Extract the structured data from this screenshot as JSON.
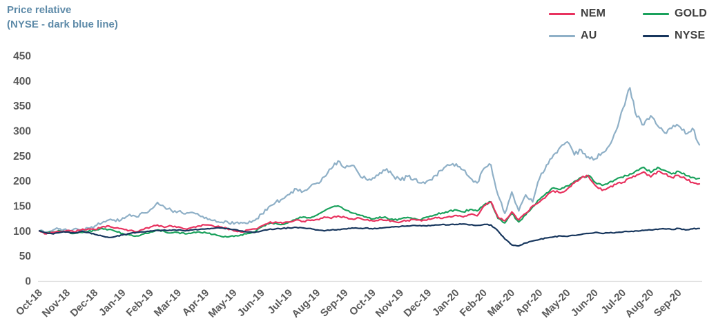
{
  "chart_data": {
    "type": "line",
    "title": "Price relative",
    "subtitle": "(NYSE - dark blue line)",
    "legend_position": "top-right",
    "legend_columns": 2,
    "grid": "baseline-only",
    "ylim": [
      0,
      450
    ],
    "y_ticks": [
      0,
      50,
      100,
      150,
      200,
      250,
      300,
      350,
      400,
      450
    ],
    "x_tick_labels": [
      "Oct-18",
      "Nov-18",
      "Dec-18",
      "Jan-19",
      "Feb-19",
      "Mar-19",
      "Apr-19",
      "May-19",
      "Jun-19",
      "Jul-19",
      "Aug-19",
      "Sep-19",
      "Oct-19",
      "Nov-19",
      "Dec-19",
      "Jan-20",
      "Feb-20",
      "Mar-20",
      "Apr-20",
      "May-20",
      "Jun-20",
      "Jul-20",
      "Aug-20",
      "Sep-20"
    ],
    "points_per_month": 4,
    "axis_text_color": "#595959",
    "title_color": "#5d8aa8",
    "baseline_color": "#d9d9d9",
    "series": [
      {
        "name": "NEM",
        "color": "#e8325f",
        "values": [
          100,
          94,
          97,
          99,
          101,
          98,
          102,
          104,
          103,
          108,
          110,
          106,
          104,
          101,
          98,
          103,
          108,
          112,
          107,
          110,
          108,
          104,
          107,
          110,
          112,
          110,
          108,
          105,
          100,
          98,
          102,
          104,
          110,
          116,
          118,
          115,
          118,
          122,
          119,
          121,
          123,
          128,
          125,
          130,
          127,
          124,
          126,
          122,
          120,
          123,
          121,
          119,
          118,
          121,
          123,
          120,
          124,
          127,
          125,
          129,
          131,
          128,
          133,
          130,
          150,
          158,
          128,
          120,
          138,
          122,
          135,
          150,
          158,
          170,
          180,
          176,
          184,
          196,
          206,
          210,
          191,
          181,
          187,
          193,
          197,
          206,
          212,
          218,
          208,
          219,
          214,
          207,
          211,
          204,
          197,
          194
        ]
      },
      {
        "name": "GOLD",
        "color": "#1aa15c",
        "values": [
          100,
          96,
          98,
          100,
          98,
          95,
          97,
          99,
          101,
          105,
          103,
          99,
          95,
          92,
          90,
          94,
          98,
          102,
          99,
          96,
          97,
          94,
          96,
          98,
          96,
          93,
          90,
          88,
          89,
          92,
          95,
          98,
          108,
          114,
          116,
          113,
          118,
          124,
          128,
          126,
          132,
          140,
          147,
          150,
          142,
          136,
          132,
          128,
          124,
          128,
          126,
          122,
          124,
          127,
          125,
          123,
          128,
          132,
          136,
          140,
          142,
          138,
          143,
          140,
          152,
          158,
          125,
          116,
          135,
          118,
          132,
          148,
          163,
          176,
          186,
          183,
          190,
          199,
          207,
          211,
          197,
          191,
          197,
          203,
          207,
          214,
          221,
          227,
          217,
          227,
          221,
          214,
          219,
          211,
          207,
          205
        ]
      },
      {
        "name": "AU",
        "color": "#8fb0c7",
        "values": [
          100,
          98,
          102,
          104,
          101,
          104,
          102,
          106,
          110,
          116,
          122,
          119,
          126,
          133,
          128,
          136,
          143,
          157,
          148,
          141,
          139,
          134,
          137,
          131,
          127,
          121,
          117,
          119,
          114,
          117,
          115,
          121,
          134,
          148,
          157,
          164,
          173,
          184,
          179,
          189,
          196,
          208,
          224,
          240,
          226,
          231,
          214,
          204,
          206,
          216,
          224,
          209,
          201,
          209,
          204,
          196,
          201,
          211,
          221,
          231,
          234,
          222,
          206,
          196,
          225,
          232,
          172,
          135,
          178,
          140,
          172,
          158,
          205,
          232,
          252,
          268,
          278,
          252,
          262,
          248,
          244,
          256,
          270,
          300,
          345,
          386,
          328,
          312,
          330,
          310,
          296,
          305,
          310,
          294,
          305,
          272
        ]
      },
      {
        "name": "NYSE",
        "color": "#17365d",
        "values": [
          100,
          96,
          94,
          97,
          98,
          96,
          99,
          97,
          93,
          90,
          87,
          89,
          92,
          95,
          97,
          98,
          100,
          101,
          102,
          101,
          102,
          100,
          102,
          103,
          104,
          105,
          106,
          105,
          103,
          100,
          98,
          97,
          100,
          103,
          104,
          105,
          106,
          107,
          106,
          105,
          102,
          100,
          102,
          103,
          104,
          106,
          105,
          106,
          104,
          106,
          107,
          108,
          109,
          110,
          111,
          110,
          111,
          112,
          113,
          112,
          113,
          114,
          112,
          111,
          113,
          112,
          100,
          84,
          72,
          70,
          76,
          80,
          83,
          86,
          88,
          90,
          89,
          91,
          93,
          95,
          97,
          95,
          96,
          97,
          98,
          99,
          100,
          101,
          102,
          103,
          104,
          103,
          105,
          102,
          104,
          105
        ]
      }
    ]
  }
}
